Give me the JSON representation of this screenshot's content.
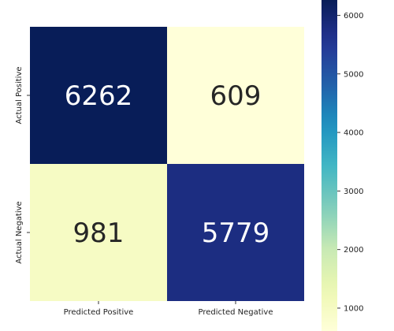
{
  "chart_data": {
    "type": "heatmap",
    "title": "",
    "xlabel": "",
    "ylabel": "",
    "x_categories": [
      "Predicted Positive",
      "Predicted Negative"
    ],
    "y_categories": [
      "Actual Positive",
      "Actual Negative"
    ],
    "values": [
      [
        6262,
        609
      ],
      [
        981,
        5779
      ]
    ],
    "colormap": "YlGnBu",
    "colorbar": {
      "range": [
        609,
        6262
      ],
      "ticks": [
        1000,
        2000,
        3000,
        4000,
        5000,
        6000
      ],
      "tick_labels": [
        "1000",
        "2000",
        "3000",
        "4000",
        "5000",
        "6000"
      ],
      "placement": "right"
    },
    "annotation_colors": {
      "dark_cell": "#ffffff",
      "light_cell": "#262626"
    }
  }
}
